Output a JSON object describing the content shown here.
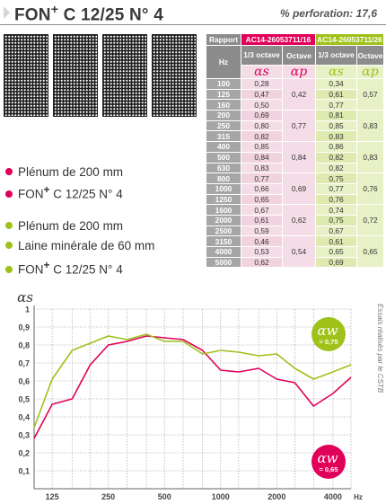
{
  "header": {
    "title_main": "FON",
    "title_plus": "+",
    "title_rest": " C 12/25 N° 4",
    "perforation": "% perforation: 17,6"
  },
  "table": {
    "rapport_label": "Rapport",
    "report_red": "AC14-26053711/16",
    "report_green": "AC14-26053711/26",
    "hz_label": "Hz",
    "third_octave_label": "1/3 octave",
    "octave_label": "Octave",
    "alpha_s": "αs",
    "alpha_p": "αp",
    "rows": [
      {
        "hz": "100",
        "r13": "0,28",
        "rOct": "",
        "g13": "0,34",
        "gOct": ""
      },
      {
        "hz": "125",
        "r13": "0,47",
        "rOct": "0,42",
        "g13": "0,61",
        "gOct": "0,57"
      },
      {
        "hz": "160",
        "r13": "0,50",
        "rOct": "",
        "g13": "0,77",
        "gOct": ""
      },
      {
        "hz": "200",
        "r13": "0,69",
        "rOct": "",
        "g13": "0,81",
        "gOct": ""
      },
      {
        "hz": "250",
        "r13": "0,80",
        "rOct": "0,77",
        "g13": "0,85",
        "gOct": "0,83"
      },
      {
        "hz": "315",
        "r13": "0,82",
        "rOct": "",
        "g13": "0,83",
        "gOct": ""
      },
      {
        "hz": "400",
        "r13": "0,85",
        "rOct": "",
        "g13": "0,86",
        "gOct": ""
      },
      {
        "hz": "500",
        "r13": "0,84",
        "rOct": "0,84",
        "g13": "0,82",
        "gOct": "0,83"
      },
      {
        "hz": "630",
        "r13": "0,83",
        "rOct": "",
        "g13": "0,82",
        "gOct": ""
      },
      {
        "hz": "800",
        "r13": "0,77",
        "rOct": "",
        "g13": "0,75",
        "gOct": ""
      },
      {
        "hz": "1000",
        "r13": "0,66",
        "rOct": "0,69",
        "g13": "0,77",
        "gOct": "0,76"
      },
      {
        "hz": "1250",
        "r13": "0,65",
        "rOct": "",
        "g13": "0,76",
        "gOct": ""
      },
      {
        "hz": "1600",
        "r13": "0,67",
        "rOct": "",
        "g13": "0,74",
        "gOct": ""
      },
      {
        "hz": "2000",
        "r13": "0,61",
        "rOct": "0,62",
        "g13": "0,75",
        "gOct": "0,72"
      },
      {
        "hz": "2500",
        "r13": "0,59",
        "rOct": "",
        "g13": "0,67",
        "gOct": ""
      },
      {
        "hz": "3150",
        "r13": "0,46",
        "rOct": "",
        "g13": "0,61",
        "gOct": ""
      },
      {
        "hz": "4000",
        "r13": "0,53",
        "rOct": "0,54",
        "g13": "0,65",
        "gOct": "0,65"
      },
      {
        "hz": "5000",
        "r13": "0,62",
        "rOct": "",
        "g13": "0,69",
        "gOct": ""
      }
    ]
  },
  "legend_red": {
    "line1": "Plénum de 200 mm",
    "line2_main": "FON",
    "line2_plus": "+",
    "line2_rest": " C 12/25 N° 4"
  },
  "legend_green": {
    "line1": "Plénum de 200 mm",
    "line2": "Laine minérale de 60 mm",
    "line3_main": "FON",
    "line3_plus": "+",
    "line3_rest": " C 12/25 N° 4"
  },
  "colors": {
    "red": "#e0005a",
    "green": "#9ec21a",
    "grid": "#b8b8b8",
    "gray": "#8c8c8c"
  },
  "chart_data": {
    "type": "line",
    "ylabel": "αs",
    "xlabel_unit": "Hz",
    "side_note": "Essais réalisés par le CSTB",
    "ylim": [
      0,
      1
    ],
    "yticks": [
      "0,1",
      "0,2",
      "0,3",
      "0,4",
      "0,5",
      "0,6",
      "0,7",
      "0,8",
      "0,9",
      "1"
    ],
    "x": [
      100,
      125,
      160,
      200,
      250,
      315,
      400,
      500,
      630,
      800,
      1000,
      1250,
      1600,
      2000,
      2500,
      3150,
      4000,
      5000
    ],
    "xtick_labels": [
      "125",
      "250",
      "500",
      "1000",
      "2000",
      "4000"
    ],
    "series": [
      {
        "key": "red",
        "values": [
          0.28,
          0.47,
          0.5,
          0.69,
          0.8,
          0.82,
          0.85,
          0.84,
          0.83,
          0.77,
          0.66,
          0.65,
          0.67,
          0.61,
          0.59,
          0.46,
          0.53,
          0.62
        ]
      },
      {
        "key": "green",
        "values": [
          0.34,
          0.61,
          0.77,
          0.81,
          0.85,
          0.83,
          0.86,
          0.82,
          0.82,
          0.75,
          0.77,
          0.76,
          0.74,
          0.75,
          0.67,
          0.61,
          0.65,
          0.69
        ]
      }
    ],
    "badges": {
      "green": {
        "label": "αw",
        "value": "= 0,75"
      },
      "red": {
        "label": "αw",
        "value": "= 0,65"
      }
    }
  }
}
